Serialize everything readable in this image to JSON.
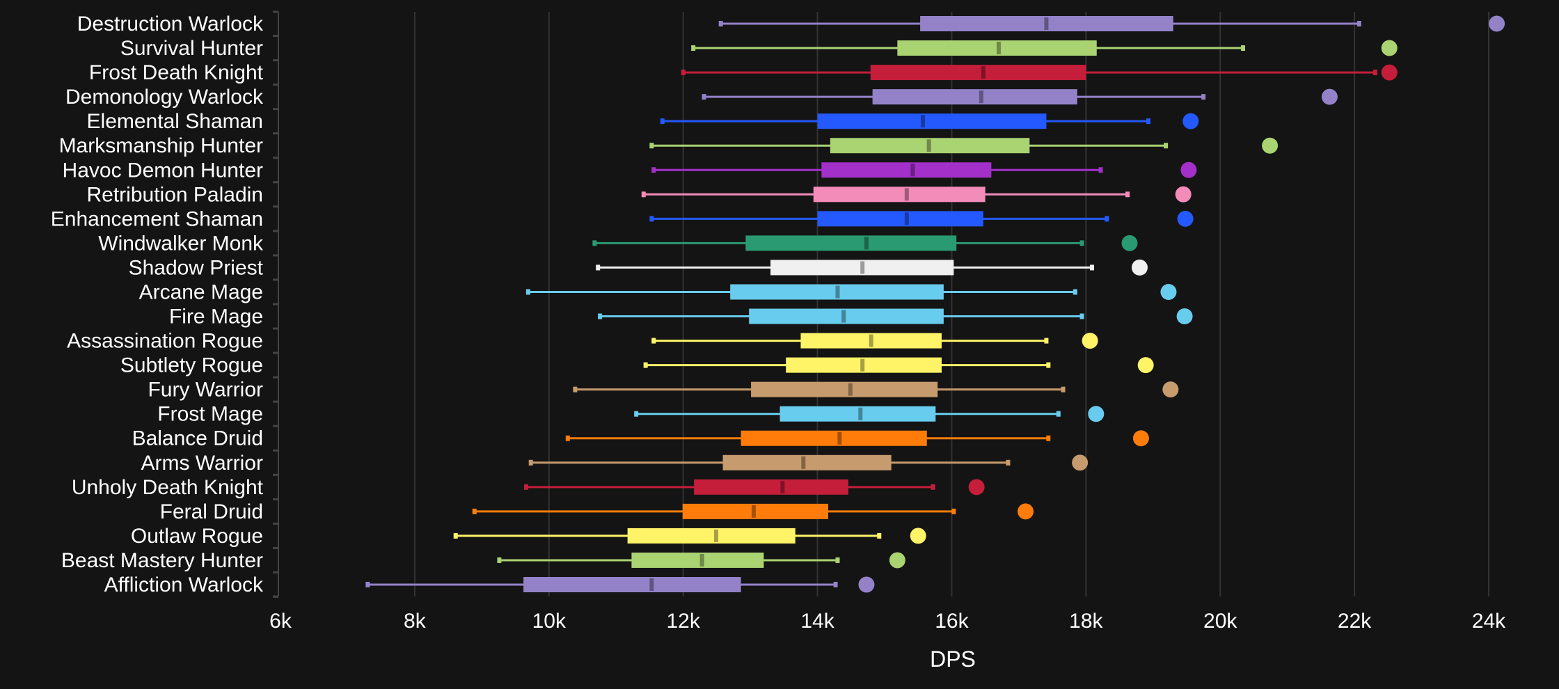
{
  "chart_data": {
    "type": "box",
    "orientation": "horizontal",
    "title": "",
    "xlabel": "DPS",
    "ylabel": "",
    "xlim": [
      6000,
      24000
    ],
    "xticks": [
      6000,
      8000,
      10000,
      12000,
      14000,
      16000,
      18000,
      20000,
      22000,
      24000
    ],
    "xtick_labels": [
      "6k",
      "8k",
      "10k",
      "12k",
      "14k",
      "16k",
      "18k",
      "20k",
      "22k",
      "24k"
    ],
    "grid": "vertical",
    "background": "#141414",
    "rows": [
      {
        "label": "Destruction Warlock",
        "color": "#9482c9",
        "min": 12560,
        "q1": 15530,
        "median": 17410,
        "q3": 19300,
        "max": 22070,
        "outlier": 24120
      },
      {
        "label": "Survival Hunter",
        "color": "#aad372",
        "min": 12150,
        "q1": 15190,
        "median": 16700,
        "q3": 18160,
        "max": 20340,
        "outlier": 22520
      },
      {
        "label": "Frost Death Knight",
        "color": "#c41e3a",
        "min": 12000,
        "q1": 14790,
        "median": 16470,
        "q3": 18000,
        "max": 22310,
        "outlier": 22520
      },
      {
        "label": "Demonology Warlock",
        "color": "#9482c9",
        "min": 12310,
        "q1": 14820,
        "median": 16440,
        "q3": 17870,
        "max": 19750,
        "outlier": 21630
      },
      {
        "label": "Elemental Shaman",
        "color": "#2459ff",
        "min": 11690,
        "q1": 14000,
        "median": 15570,
        "q3": 17410,
        "max": 18930,
        "outlier": 19560
      },
      {
        "label": "Marksmanship Hunter",
        "color": "#aad372",
        "min": 11530,
        "q1": 14190,
        "median": 15660,
        "q3": 17160,
        "max": 19190,
        "outlier": 20740
      },
      {
        "label": "Havoc Demon Hunter",
        "color": "#a330c9",
        "min": 11560,
        "q1": 14060,
        "median": 15420,
        "q3": 16590,
        "max": 18220,
        "outlier": 19530
      },
      {
        "label": "Retribution Paladin",
        "color": "#f48cba",
        "min": 11410,
        "q1": 13940,
        "median": 15330,
        "q3": 16500,
        "max": 18620,
        "outlier": 19450
      },
      {
        "label": "Enhancement Shaman",
        "color": "#2459ff",
        "min": 11530,
        "q1": 14000,
        "median": 15330,
        "q3": 16470,
        "max": 18310,
        "outlier": 19480
      },
      {
        "label": "Windwalker Monk",
        "color": "#2a9a72",
        "min": 10680,
        "q1": 12930,
        "median": 14730,
        "q3": 16070,
        "max": 17940,
        "outlier": 18650
      },
      {
        "label": "Shadow Priest",
        "color": "#f0f0f0",
        "min": 10730,
        "q1": 13300,
        "median": 14670,
        "q3": 16030,
        "max": 18090,
        "outlier": 18800
      },
      {
        "label": "Arcane Mage",
        "color": "#68ccef",
        "min": 9690,
        "q1": 12700,
        "median": 14300,
        "q3": 15880,
        "max": 17840,
        "outlier": 19230
      },
      {
        "label": "Fire Mage",
        "color": "#68ccef",
        "min": 10760,
        "q1": 12980,
        "median": 14390,
        "q3": 15880,
        "max": 17940,
        "outlier": 19470
      },
      {
        "label": "Assassination Rogue",
        "color": "#fff468",
        "min": 11560,
        "q1": 13750,
        "median": 14800,
        "q3": 15850,
        "max": 17410,
        "outlier": 18060
      },
      {
        "label": "Subtlety Rogue",
        "color": "#fff468",
        "min": 11440,
        "q1": 13530,
        "median": 14670,
        "q3": 15850,
        "max": 17440,
        "outlier": 18890
      },
      {
        "label": "Fury Warrior",
        "color": "#c69b6d",
        "min": 10390,
        "q1": 13010,
        "median": 14490,
        "q3": 15790,
        "max": 17660,
        "outlier": 19260
      },
      {
        "label": "Frost Mage",
        "color": "#68ccef",
        "min": 11300,
        "q1": 13440,
        "median": 14640,
        "q3": 15760,
        "max": 17590,
        "outlier": 18150
      },
      {
        "label": "Balance Druid",
        "color": "#ff7c0a",
        "min": 10280,
        "q1": 12860,
        "median": 14330,
        "q3": 15630,
        "max": 17440,
        "outlier": 18820
      },
      {
        "label": "Arms Warrior",
        "color": "#c69b6d",
        "min": 9730,
        "q1": 12590,
        "median": 13790,
        "q3": 15100,
        "max": 16840,
        "outlier": 17910
      },
      {
        "label": "Unholy Death Knight",
        "color": "#c41e3a",
        "min": 9660,
        "q1": 12160,
        "median": 13480,
        "q3": 14460,
        "max": 15720,
        "outlier": 16370
      },
      {
        "label": "Feral Druid",
        "color": "#ff7c0a",
        "min": 8890,
        "q1": 11990,
        "median": 13050,
        "q3": 14160,
        "max": 16030,
        "outlier": 17100
      },
      {
        "label": "Outlaw Rogue",
        "color": "#fff468",
        "min": 8610,
        "q1": 11170,
        "median": 12490,
        "q3": 13670,
        "max": 14920,
        "outlier": 15500
      },
      {
        "label": "Beast Mastery Hunter",
        "color": "#aad372",
        "min": 9260,
        "q1": 11230,
        "median": 12280,
        "q3": 13200,
        "max": 14300,
        "outlier": 15190
      },
      {
        "label": "Affliction Warlock",
        "color": "#9482c9",
        "min": 7300,
        "q1": 9620,
        "median": 11530,
        "q3": 12860,
        "max": 14270,
        "outlier": 14730
      }
    ]
  }
}
